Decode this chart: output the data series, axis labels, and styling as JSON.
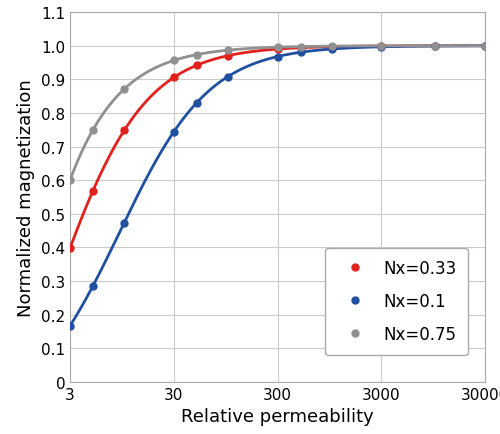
{
  "title": "",
  "xlabel": "Relative permeability",
  "ylabel": "Normalized magnetization",
  "Nx_values": [
    0.33,
    0.1,
    0.75
  ],
  "colors": [
    "#e2211c",
    "#2050a0",
    "#909090"
  ],
  "mu_r_points": [
    3,
    5,
    10,
    30,
    50,
    100,
    300,
    500,
    1000,
    3000,
    10000,
    30000
  ],
  "xlim_log": [
    3,
    30000
  ],
  "ylim": [
    0,
    1.1
  ],
  "yticks": [
    0,
    0.1,
    0.2,
    0.3,
    0.4,
    0.5,
    0.6,
    0.7,
    0.8,
    0.9,
    1.0,
    1.1
  ],
  "xtick_labels": [
    "3",
    "30",
    "300",
    "3000",
    "30000"
  ],
  "xtick_positions": [
    3,
    30,
    300,
    3000,
    30000
  ],
  "legend_labels": [
    "Nx=0.33",
    "Nx=0.1",
    "Nx=0.75"
  ],
  "background_color": "#ffffff",
  "grid_color": "#cccccc",
  "marker_size": 5,
  "linewidth": 2.0,
  "tick_fontsize": 11,
  "label_fontsize": 13,
  "legend_fontsize": 12
}
